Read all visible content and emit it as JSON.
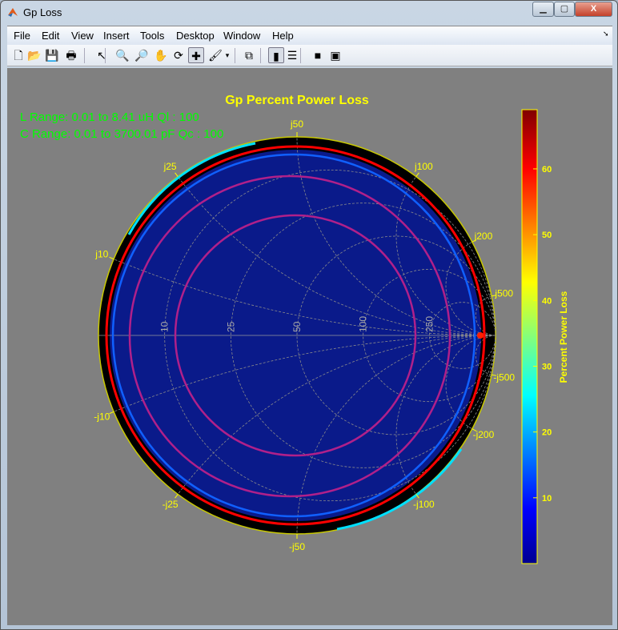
{
  "window": {
    "title": "Gp Loss",
    "minimize": "▁",
    "maximize": "▢",
    "close": "X"
  },
  "menu": [
    "File",
    "Edit",
    "View",
    "Insert",
    "Tools",
    "Desktop",
    "Window",
    "Help"
  ],
  "toolbar": [
    {
      "name": "new-figure",
      "glyph": "🗋"
    },
    {
      "name": "open-file",
      "glyph": "📂"
    },
    {
      "name": "save",
      "glyph": "💾"
    },
    {
      "name": "print",
      "glyph": "🖶"
    },
    {
      "name": "edit-plot",
      "glyph": "↖"
    },
    {
      "name": "zoom-in",
      "glyph": "🔍"
    },
    {
      "name": "zoom-out",
      "glyph": "🔎"
    },
    {
      "name": "pan",
      "glyph": "✋"
    },
    {
      "name": "rotate-3d",
      "glyph": "⟳"
    },
    {
      "name": "data-cursor",
      "glyph": "✚"
    },
    {
      "name": "brush",
      "glyph": "🖌"
    },
    {
      "name": "brush-dropdown",
      "glyph": "▾"
    },
    {
      "name": "link-plot",
      "glyph": "⧉"
    },
    {
      "name": "insert-colorbar",
      "glyph": "▮"
    },
    {
      "name": "insert-legend",
      "glyph": "☰"
    },
    {
      "name": "hide-plot-tools",
      "glyph": "■"
    },
    {
      "name": "show-plot-tools",
      "glyph": "▣"
    }
  ],
  "chart_data": {
    "type": "heatmap",
    "chart_kind": "smith-chart",
    "title": "Gp Percent Power Loss",
    "annotations": [
      "L  Range: 0.01 to 8.41 uH  Ql : 100",
      "C Range: 0.01 to 3700.01 pF  Qc : 100"
    ],
    "resistance_labels": [
      "10",
      "25",
      "50",
      "100",
      "250"
    ],
    "resistance_values": [
      10,
      25,
      50,
      100,
      250
    ],
    "reactance_labels": [
      "j10",
      "j25",
      "j50",
      "j100",
      "j200",
      "j500",
      "-j500",
      "-j200",
      "-j100",
      "-j50",
      "-j25",
      "-j10"
    ],
    "reactance_values": [
      10,
      25,
      50,
      100,
      200,
      500
    ],
    "z0": 50,
    "grid": true,
    "colorbar": {
      "label": "Percent Power Loss",
      "ticks": [
        10,
        20,
        30,
        40,
        50,
        60
      ],
      "clim": [
        0,
        69
      ],
      "colormap": "jet",
      "location": "right"
    },
    "colors": {
      "title": "#ffff00",
      "annotation": "#00ff00",
      "axes": "#ffff00",
      "background": "#808080"
    }
  }
}
